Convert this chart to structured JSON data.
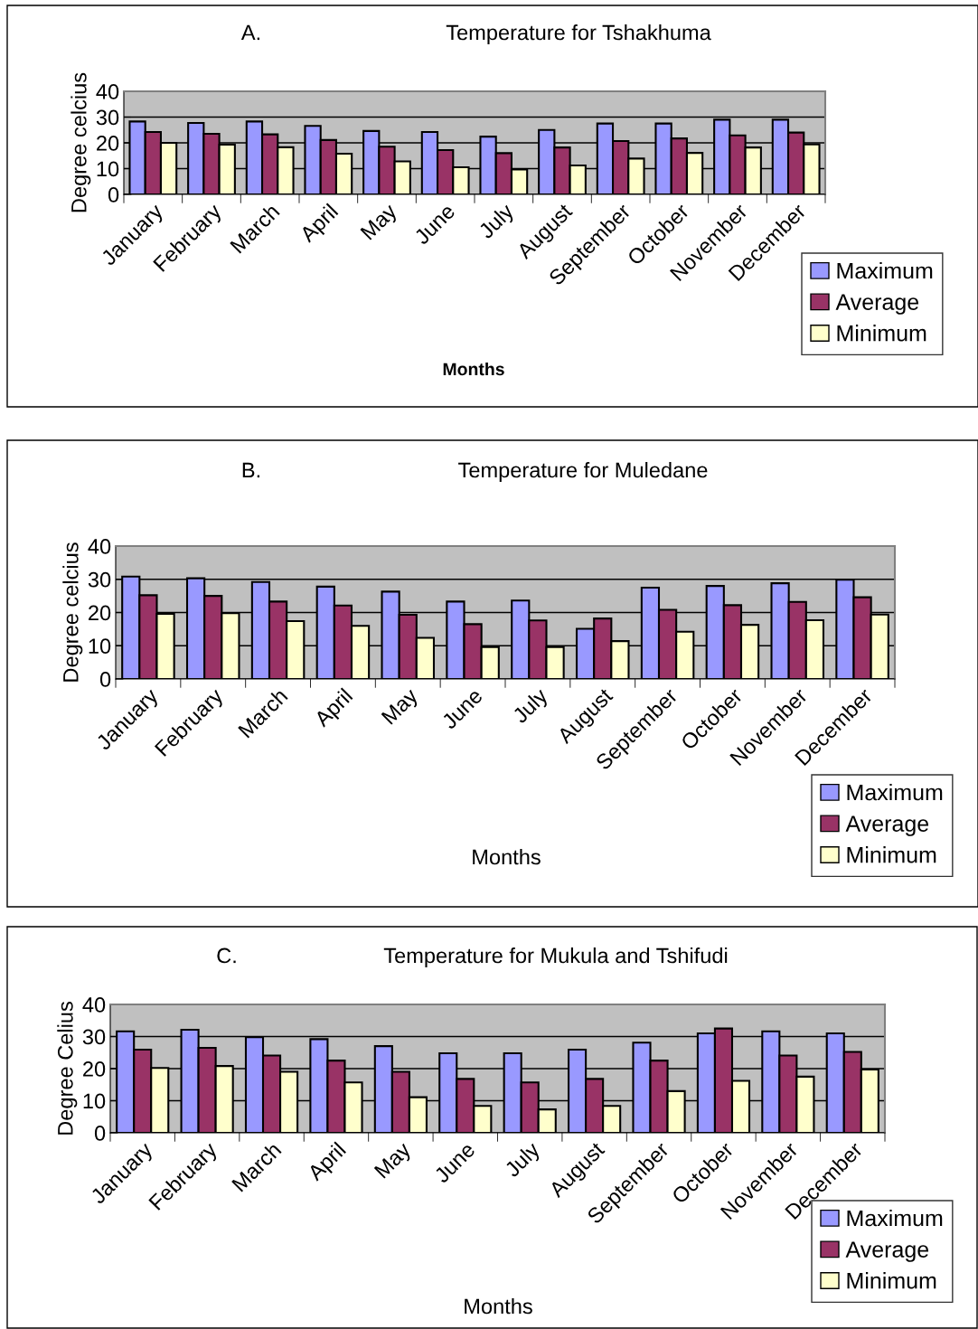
{
  "chart_data": [
    {
      "type": "bar",
      "title": "Temperature for Tshakhuma",
      "annotations": [
        "A."
      ],
      "xlabel": "Months",
      "ylabel": "Degree celcius",
      "categories": [
        "January",
        "February",
        "March",
        "April",
        "May",
        "June",
        "July",
        "August",
        "September",
        "October",
        "November",
        "December"
      ],
      "series": [
        {
          "name": "Maximum",
          "color": "#9999ff",
          "values": [
            28.3,
            27.7,
            28.3,
            26.6,
            24.6,
            24.2,
            22.4,
            25.0,
            27.5,
            27.5,
            29.0,
            29.0
          ]
        },
        {
          "name": "Average",
          "color": "#993366",
          "values": [
            24.2,
            23.5,
            23.3,
            21.1,
            18.5,
            17.2,
            16.0,
            18.2,
            20.7,
            21.7,
            22.9,
            24.0
          ]
        },
        {
          "name": "Minimum",
          "color": "#ffffcc",
          "values": [
            20.0,
            19.3,
            18.3,
            15.8,
            12.8,
            10.5,
            9.7,
            11.2,
            13.9,
            16.1,
            18.2,
            19.4
          ]
        }
      ],
      "ylim": [
        0,
        40
      ],
      "yticks": [
        0,
        10,
        20,
        30,
        40
      ],
      "grid": "y",
      "legend": "right"
    },
    {
      "type": "bar",
      "title": "Temperature for Muledane",
      "annotations": [
        "B."
      ],
      "xlabel": "Months",
      "ylabel": "Degree celcius",
      "categories": [
        "January",
        "February",
        "March",
        "April",
        "May",
        "June",
        "July",
        "August",
        "September",
        "October",
        "November",
        "December"
      ],
      "series": [
        {
          "name": "Maximum",
          "color": "#9999ff",
          "values": [
            30.8,
            30.3,
            29.2,
            27.8,
            26.3,
            23.3,
            23.6,
            15.1,
            27.5,
            28.0,
            28.8,
            29.9
          ]
        },
        {
          "name": "Average",
          "color": "#993366",
          "values": [
            25.2,
            25.0,
            23.3,
            22.1,
            19.3,
            16.5,
            17.6,
            18.2,
            20.8,
            22.2,
            23.2,
            24.6
          ]
        },
        {
          "name": "Minimum",
          "color": "#ffffcc",
          "values": [
            19.6,
            19.8,
            17.4,
            16.0,
            12.4,
            9.6,
            9.6,
            11.4,
            14.2,
            16.3,
            17.7,
            19.4
          ]
        }
      ],
      "ylim": [
        0,
        40
      ],
      "yticks": [
        0,
        10,
        20,
        30,
        40
      ],
      "grid": "y",
      "legend": "right"
    },
    {
      "type": "bar",
      "title": "Temperature for Mukula and Tshifudi",
      "annotations": [
        "C."
      ],
      "xlabel": "Months",
      "ylabel": "Degree Celius",
      "categories": [
        "January",
        "February",
        "March",
        "April",
        "May",
        "June",
        "July",
        "August",
        "September",
        "October",
        "November",
        "December"
      ],
      "series": [
        {
          "name": "Maximum",
          "color": "#9999ff",
          "values": [
            31.6,
            32.1,
            29.8,
            29.2,
            27.0,
            24.8,
            24.8,
            25.9,
            28.1,
            31.0,
            31.6,
            31.0
          ]
        },
        {
          "name": "Average",
          "color": "#993366",
          "values": [
            25.9,
            26.5,
            24.1,
            22.5,
            19.0,
            16.8,
            15.7,
            16.8,
            22.5,
            32.5,
            24.1,
            25.2
          ]
        },
        {
          "name": "Minimum",
          "color": "#ffffcc",
          "values": [
            20.2,
            20.8,
            19.0,
            15.7,
            11.1,
            8.4,
            7.3,
            8.4,
            13.0,
            16.2,
            17.5,
            19.7
          ]
        }
      ],
      "ylim": [
        0,
        40
      ],
      "yticks": [
        0,
        10,
        20,
        30,
        40
      ],
      "grid": "y",
      "legend": "right"
    }
  ]
}
